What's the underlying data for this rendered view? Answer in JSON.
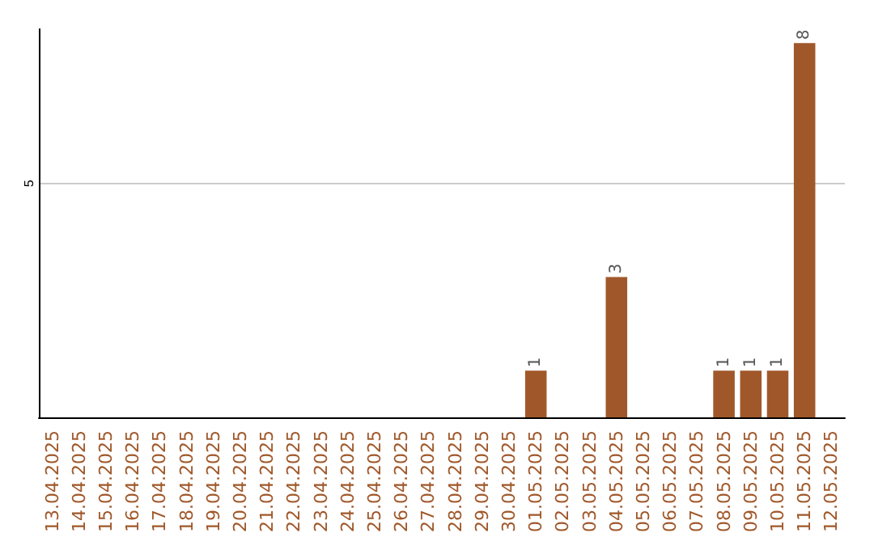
{
  "chart_data": {
    "type": "bar",
    "categories": [
      "13.04.2025",
      "14.04.2025",
      "15.04.2025",
      "16.04.2025",
      "17.04.2025",
      "18.04.2025",
      "19.04.2025",
      "20.04.2025",
      "21.04.2025",
      "22.04.2025",
      "23.04.2025",
      "24.04.2025",
      "25.04.2025",
      "26.04.2025",
      "27.04.2025",
      "28.04.2025",
      "29.04.2025",
      "30.04.2025",
      "01.05.2025",
      "02.05.2025",
      "03.05.2025",
      "04.05.2025",
      "05.05.2025",
      "06.05.2025",
      "07.05.2025",
      "08.05.2025",
      "09.05.2025",
      "10.05.2025",
      "11.05.2025",
      "12.05.2025"
    ],
    "values": [
      null,
      null,
      null,
      null,
      null,
      null,
      null,
      null,
      null,
      null,
      null,
      null,
      null,
      null,
      null,
      null,
      null,
      null,
      1,
      null,
      null,
      3,
      null,
      null,
      null,
      1,
      1,
      1,
      8,
      null
    ],
    "value_labels": [
      null,
      null,
      null,
      null,
      null,
      null,
      null,
      null,
      null,
      null,
      null,
      null,
      null,
      null,
      null,
      null,
      null,
      null,
      "1",
      null,
      null,
      "3",
      null,
      null,
      null,
      "1",
      "1",
      "1",
      "8",
      null
    ],
    "color": "#a0582a",
    "ylim": [
      0,
      8.3
    ],
    "yticks": [
      5
    ],
    "grid": "y"
  }
}
